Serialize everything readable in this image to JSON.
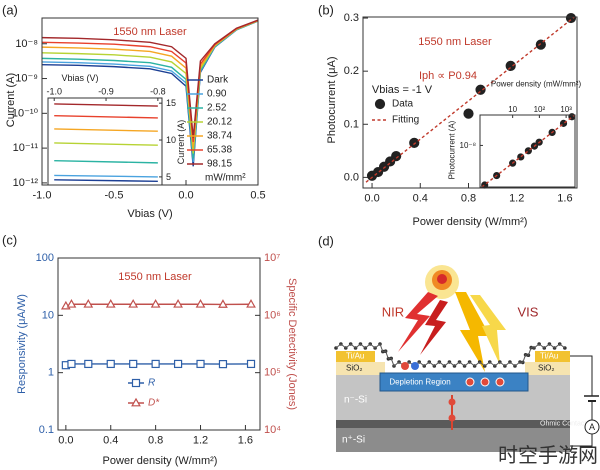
{
  "chart_data": [
    {
      "type": "line",
      "panel_label": "(a)",
      "annotations": [
        "1550 nm Laser"
      ],
      "x_label": "Vbias (V)",
      "y_label": "Current (A)",
      "y_scale": "log",
      "legend": "right",
      "legend_title": "mW/mm²",
      "x": [
        -1.0,
        -0.75,
        -0.5,
        -0.25,
        -0.1,
        0,
        0.05,
        0.1,
        0.2,
        0.35,
        0.5
      ],
      "series": [
        {
          "name": "Dark",
          "color": "#1c3f94",
          "values": [
            2.5e-09,
            2.4e-09,
            2.2e-09,
            1.9e-09,
            1.4e-09,
            6e-10,
            3e-12,
            1.5e-09,
            8e-09,
            2.5e-08,
            4.5e-08
          ]
        },
        {
          "name": "0.90",
          "color": "#4aa3df",
          "values": [
            3e-09,
            2.85e-09,
            2.6e-09,
            2.25e-09,
            1.65e-09,
            7.5e-10,
            4e-12,
            1.6e-09,
            8.2e-09,
            2.5e-08,
            4.5e-08
          ]
        },
        {
          "name": "2.52",
          "color": "#2bb3a3",
          "values": [
            3.8e-09,
            3.6e-09,
            3.3e-09,
            2.85e-09,
            2.1e-09,
            9.5e-10,
            5e-12,
            1.7e-09,
            8.4e-09,
            2.55e-08,
            4.5e-08
          ]
        },
        {
          "name": "20.12",
          "color": "#b7d334",
          "values": [
            5.5e-09,
            5.2e-09,
            4.8e-09,
            4.1e-09,
            3e-09,
            1.4e-09,
            7e-12,
            1.9e-09,
            8.7e-09,
            2.6e-08,
            4.6e-08
          ]
        },
        {
          "name": "38.74",
          "color": "#f5a623",
          "values": [
            8e-09,
            7.6e-09,
            7e-09,
            6e-09,
            4.4e-09,
            2e-09,
            1e-11,
            2.2e-09,
            9e-09,
            2.65e-08,
            4.6e-08
          ]
        },
        {
          "name": "65.38",
          "color": "#e8412c",
          "values": [
            1.1e-08,
            1.05e-08,
            9.7e-09,
            8.2e-09,
            6e-09,
            2.8e-09,
            1.5e-11,
            2.6e-09,
            9.5e-09,
            2.7e-08,
            4.7e-08
          ]
        },
        {
          "name": "98.15",
          "color": "#a3282b",
          "values": [
            1.5e-08,
            1.43e-08,
            1.3e-08,
            1.1e-08,
            8.2e-09,
            3.8e-09,
            2e-11,
            3.2e-09,
            1e-08,
            2.8e-08,
            4.8e-08
          ]
        }
      ],
      "xlim": [
        -1.0,
        0.5
      ],
      "xticks": [
        {
          "value": -1,
          "label": "-1.0"
        },
        -0.5,
        {
          "value": 0,
          "label": "0.0"
        },
        0.5
      ],
      "ylim": [
        8.7e-13,
        5.5e-08
      ],
      "yticks": [
        {
          "value": 1e-12,
          "label": "10⁻¹²"
        },
        {
          "value": 1e-11,
          "label": "10⁻¹¹"
        },
        {
          "value": 1e-10,
          "label": "10⁻¹⁰"
        },
        {
          "value": 1e-09,
          "label": "10⁻⁹"
        },
        {
          "value": 1e-08,
          "label": "10⁻⁸"
        }
      ]
    },
    {
      "type": "line",
      "x_label": "Vbias (V)",
      "y_label": "Current (A)",
      "x": [
        -1.0,
        -0.8
      ],
      "series": [
        {
          "color": "#1c3f94",
          "values": [
            4.6,
            4.4
          ]
        },
        {
          "color": "#4aa3df",
          "values": [
            5.2,
            5.0
          ]
        },
        {
          "color": "#2bb3a3",
          "values": [
            7.2,
            6.9
          ]
        },
        {
          "color": "#b7d334",
          "values": [
            9.6,
            9.3
          ]
        },
        {
          "color": "#f5a623",
          "values": [
            11.5,
            11.2
          ]
        },
        {
          "color": "#e8412c",
          "values": [
            13.3,
            13.0
          ]
        },
        {
          "color": "#a3282b",
          "values": [
            14.9,
            14.6
          ]
        }
      ],
      "xlim": [
        -1.012,
        -0.792
      ],
      "xticks": [
        {
          "value": -1,
          "label": "-1.0"
        },
        -0.9,
        -0.8
      ],
      "ylim": [
        3.9,
        15.7
      ],
      "yticks": [
        5,
        10,
        15
      ]
    },
    {
      "type": "scatter",
      "panel_label": "(b)",
      "annotations": [
        "1550 nm Laser",
        "Vbias = -1 V",
        "Iph ∝ P0.94"
      ],
      "x_label": "Power density (W/mm²)",
      "y_label": "Photocurrent (μA)",
      "legend": "center left",
      "series": [
        {
          "name": "Data",
          "color": "#222222",
          "marker": "circle",
          "filled": true,
          "x": [
            0.0,
            0.05,
            0.1,
            0.15,
            0.2,
            0.35,
            0.8,
            0.9,
            1.15,
            1.4,
            1.65
          ],
          "values": [
            0.003,
            0.01,
            0.02,
            0.03,
            0.04,
            0.065,
            0.12,
            0.165,
            0.21,
            0.25,
            0.3
          ]
        },
        {
          "name": "Fitting",
          "color": "#c0392b",
          "line": "dashed",
          "x": [
            -0.05,
            1.7
          ],
          "values": [
            -0.009,
            0.306
          ]
        }
      ],
      "xlim": [
        -0.075,
        1.7
      ],
      "xticks": [
        {
          "value": 0,
          "label": "0.0"
        },
        0.4,
        0.8,
        1.2,
        1.6
      ],
      "ylim": [
        -0.02,
        0.302
      ],
      "yticks": [
        {
          "value": 0,
          "label": "0.0"
        },
        0.1,
        0.2,
        0.3
      ]
    },
    {
      "type": "scatter",
      "x_label": "Power density (mW/mm²)",
      "y_label": "Photocurrent (A)",
      "x_scale": "log",
      "y_scale": "log",
      "series": [
        {
          "color": "#222222",
          "marker": "circle",
          "filled": true,
          "x": [
            0.9,
            2.52,
            10,
            20.12,
            38.74,
            65.38,
            98.15,
            300,
            800,
            1650
          ],
          "values": [
            1.6e-10,
            4.3e-10,
            1.57e-09,
            3e-09,
            5.7e-09,
            9.3e-09,
            1.4e-08,
            3.9e-08,
            1e-07,
            2e-07
          ]
        },
        {
          "color": "#c0392b",
          "line": "dashed",
          "x": [
            0.7,
            2000
          ],
          "values": [
            1.3e-10,
            2.3e-07
          ]
        }
      ],
      "xlim": [
        0.6,
        2150
      ],
      "xticks": [
        10,
        {
          "value": 100,
          "label": "10²"
        },
        {
          "value": 1000,
          "label": "10³"
        }
      ],
      "ylim": [
        1.3e-10,
        2.4e-07
      ],
      "yticks": [
        {
          "value": 1e-08,
          "label": "10⁻⁸"
        }
      ]
    },
    {
      "type": "line",
      "panel_label": "(c)",
      "annotations": [
        "1550 nm Laser"
      ],
      "x_label": "Power density (W/mm²)",
      "y_label": "Responsivity (μA/W)",
      "y2_label": "Specific Detectivity (Jones)",
      "y_scale": "log",
      "y2_scale": "log",
      "legend": "lower center",
      "x": [
        0.0,
        0.05,
        0.2,
        0.4,
        0.6,
        0.8,
        1.0,
        1.2,
        1.4,
        1.65
      ],
      "series": [
        {
          "name": "R",
          "color": "#2e5fa8",
          "marker": "square",
          "filled": false,
          "line": "solid",
          "values": [
            1.35,
            1.42,
            1.42,
            1.42,
            1.42,
            1.42,
            1.42,
            1.42,
            1.41,
            1.42
          ]
        },
        {
          "name": "D*",
          "color": "#c0504d",
          "marker": "triangle",
          "filled": false,
          "line": "solid",
          "axis": "y2",
          "values": [
            1450000.0,
            1560000.0,
            1560000.0,
            1560000.0,
            1560000.0,
            1560000.0,
            1560000.0,
            1560000.0,
            1550000.0,
            1560000.0
          ]
        }
      ],
      "xlim": [
        -0.07,
        1.73
      ],
      "xticks": [
        {
          "value": 0,
          "label": "0.0"
        },
        0.4,
        0.8,
        1.2,
        1.6
      ],
      "ylim": [
        0.1,
        100
      ],
      "yticks": [
        0.1,
        1,
        10,
        100
      ],
      "y2lim": [
        10000,
        10000000
      ],
      "y2ticks": [
        {
          "value": 10000,
          "label": "10⁴"
        },
        {
          "value": 100000,
          "label": "10⁵"
        },
        {
          "value": 1000000,
          "label": "10⁶"
        },
        {
          "value": 10000000,
          "label": "10⁷"
        }
      ]
    }
  ],
  "diagram": {
    "panel_label": "(d)",
    "nir": "NIR",
    "vis": "VIS",
    "ti_au_left": "Ti/Au",
    "ti_au_right": "Ti/Au",
    "sio2_left": "SiO₂",
    "sio2_right": "SiO₂",
    "depletion": "Depletion Region",
    "n_minus": "n⁻-Si",
    "n_plus": "n⁺-Si",
    "ohmic": "Ohmic Contact",
    "ammeter": "A"
  },
  "watermark": "时空手游网"
}
